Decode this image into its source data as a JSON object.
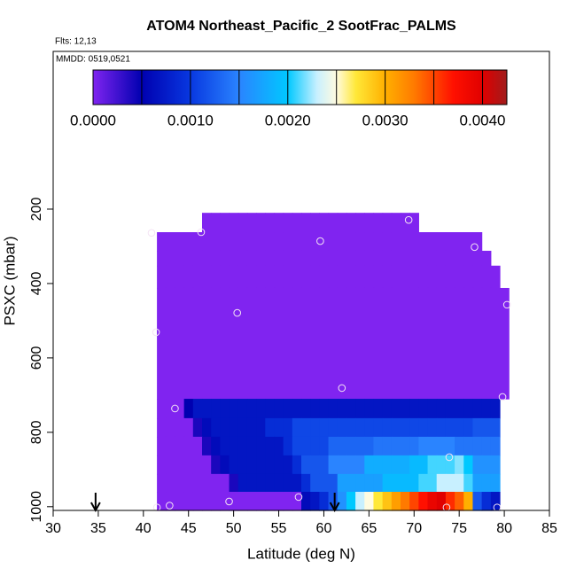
{
  "chart_data": {
    "type": "heatmap",
    "title": "ATOM4 Northeast_Pacific_2 SootFrac_PALMS",
    "flights": "Flts: 12,13",
    "dates": "MMDD: 0519,0521",
    "xlabel": "Latitude (deg N)",
    "ylabel": "PSXC (mbar)",
    "xlim": [
      30,
      85
    ],
    "xticks": [
      30,
      35,
      40,
      45,
      50,
      55,
      60,
      65,
      70,
      75,
      80,
      85
    ],
    "ylim": [
      1010,
      -224
    ],
    "yticks": [
      200,
      400,
      600,
      800,
      1000
    ],
    "x_edges": [
      41.5,
      42.5,
      43.5,
      44.5,
      45.5,
      46.5,
      47.5,
      48.5,
      49.5,
      50.5,
      51.5,
      52.5,
      53.5,
      54.5,
      55.5,
      56.5,
      57.5,
      58.5,
      59.5,
      60.5,
      61.5,
      62.5,
      63.5,
      64.5,
      65.5,
      66.5,
      67.5,
      68.5,
      69.5,
      70.5,
      71.5,
      72.5,
      73.5,
      74.5,
      75.5,
      76.5,
      77.5,
      78.5,
      79.5,
      80.5
    ],
    "y_edges": [
      210,
      262,
      312,
      352,
      412,
      710,
      762,
      812,
      862,
      912,
      960,
      1010
    ],
    "z": [
      [
        null,
        null,
        null,
        null,
        null,
        0,
        0,
        0,
        0,
        0,
        0,
        0,
        0,
        0,
        0,
        0,
        0,
        0,
        0,
        0,
        0,
        0,
        0,
        0,
        0,
        0,
        0,
        0,
        0,
        null,
        null,
        null,
        null,
        null,
        null,
        null,
        null,
        null,
        null
      ],
      [
        0,
        0,
        0,
        0,
        0,
        0,
        0,
        0,
        0,
        0,
        0,
        0,
        0,
        0,
        0,
        0,
        0,
        0,
        0,
        0,
        0,
        0,
        0,
        0,
        0,
        0,
        0,
        0,
        0,
        0,
        0,
        0,
        0,
        0,
        0,
        0,
        null,
        null,
        null
      ],
      [
        0,
        0,
        0,
        0,
        0,
        0,
        0,
        0,
        0,
        0,
        0,
        0,
        0,
        0,
        0,
        0,
        0,
        0,
        0,
        0,
        0,
        0,
        0,
        0,
        0,
        0,
        0,
        0,
        0,
        0,
        0,
        0,
        0,
        0,
        0,
        0,
        0,
        null,
        null
      ],
      [
        0,
        0,
        0,
        0,
        0,
        0,
        0,
        0,
        0,
        0,
        0,
        0,
        0,
        0,
        0,
        0,
        0,
        0,
        0,
        0,
        0,
        0,
        0,
        0,
        0,
        0,
        0,
        0,
        0,
        0,
        0,
        0,
        0,
        0,
        0,
        0,
        0,
        0,
        null
      ],
      [
        0,
        0,
        0,
        0,
        0,
        0,
        0,
        0,
        0,
        0,
        0,
        0,
        0,
        0,
        0,
        0,
        0,
        0,
        0,
        0,
        0,
        0,
        0,
        0,
        0,
        0,
        0,
        0,
        0,
        0,
        0,
        0,
        0,
        0,
        0,
        0,
        0,
        0,
        0
      ],
      [
        0,
        0,
        0,
        0.0005,
        0.0007,
        0.0007,
        0.0007,
        0.0007,
        0.0007,
        0.0007,
        0.0007,
        0.0007,
        0.0007,
        0.0007,
        0.0007,
        0.0007,
        0.0007,
        0.0007,
        0.0007,
        0.0007,
        0.0007,
        0.0007,
        0.0007,
        0.0007,
        0.0007,
        0.0007,
        0.0007,
        0.0007,
        0.0007,
        0.0007,
        0.0007,
        0.0007,
        0.0007,
        0.0007,
        0.0007,
        0.0007,
        0.0007,
        0.0007,
        null
      ],
      [
        0,
        0,
        0,
        0,
        0.0004,
        0.0006,
        0.0007,
        0.0007,
        0.0007,
        0.0007,
        0.0007,
        0.0007,
        0.0009,
        0.0009,
        0.0009,
        0.0011,
        0.0011,
        0.0011,
        0.0011,
        0.0011,
        0.0011,
        0.0011,
        0.0011,
        0.0011,
        0.0011,
        0.0011,
        0.0011,
        0.0011,
        0.0011,
        0.0011,
        0.0011,
        0.0011,
        0.0011,
        0.0011,
        0.0011,
        0.0012,
        0.0012,
        0.0012,
        null
      ],
      [
        0,
        0,
        0,
        0,
        0,
        0.0004,
        0.0006,
        0.0007,
        0.0007,
        0.0007,
        0.0007,
        0.0007,
        0.0007,
        0.0007,
        0.0009,
        0.0011,
        0.0011,
        0.0011,
        0.0011,
        0.0013,
        0.0013,
        0.0013,
        0.0013,
        0.0013,
        0.0014,
        0.0014,
        0.0014,
        0.0014,
        0.0014,
        0.0015,
        0.0015,
        0.0015,
        0.0015,
        0.0014,
        0.0014,
        0.0014,
        0.0014,
        0.0014,
        null
      ],
      [
        0,
        0,
        0,
        0,
        0,
        0,
        0.0004,
        0.0006,
        0.0007,
        0.0007,
        0.0007,
        0.0007,
        0.0007,
        0.0007,
        0.0007,
        0.0009,
        0.0012,
        0.0012,
        0.0012,
        0.0015,
        0.0015,
        0.0015,
        0.0015,
        0.0018,
        0.0018,
        0.0018,
        0.0018,
        0.0018,
        0.0019,
        0.0019,
        0.0021,
        0.0021,
        0.0021,
        0.0022,
        0.002,
        0.0016,
        0.0016,
        0.0016,
        null
      ],
      [
        0,
        0,
        0,
        0,
        0,
        0,
        0,
        0,
        0.0004,
        0.0007,
        0.0007,
        0.0007,
        0.0007,
        0.0007,
        0.0007,
        0.0007,
        0.0009,
        0.0012,
        0.0012,
        0.0012,
        0.0017,
        0.0017,
        0.0017,
        0.0017,
        0.0017,
        0.0019,
        0.0019,
        0.0019,
        0.0019,
        0.0021,
        0.0021,
        0.0023,
        0.0023,
        0.0023,
        0.0021,
        0.0017,
        0.0017,
        0.0017,
        null
      ],
      [
        0,
        0,
        0,
        0,
        0,
        0,
        0,
        0,
        0,
        0,
        0,
        0,
        0,
        0,
        0,
        0,
        0.0006,
        0.0007,
        0.0009,
        0.0012,
        0.0016,
        0.002,
        0.0023,
        0.0025,
        0.0027,
        0.0029,
        0.0031,
        0.0033,
        0.0035,
        0.0037,
        0.0039,
        0.004,
        0.0036,
        0.0034,
        0.003,
        0.0012,
        0.0009,
        0.0007,
        null
      ]
    ],
    "points": {
      "lat": [
        40.9,
        46.4,
        69.4,
        59.6,
        76.7,
        80.3,
        50.4,
        41.4,
        62.0,
        79.8,
        43.5,
        73.9,
        57.2,
        49.5,
        41.5,
        42.9,
        73.6,
        79.2
      ],
      "pressure": [
        264,
        262,
        229,
        286,
        302,
        457,
        479,
        531,
        681,
        705,
        736,
        867,
        974,
        986,
        1002,
        997,
        1002,
        1002
      ]
    },
    "arrows": [
      34.7,
      61.2
    ],
    "colorbar": {
      "lim": [
        0,
        0.00425
      ],
      "ticks": [
        {
          "value": 0,
          "label": "0.0000"
        },
        {
          "value": 0.001,
          "label": "0.0010"
        },
        {
          "value": 0.002,
          "label": "0.0020"
        },
        {
          "value": 0.003,
          "label": "0.0030"
        },
        {
          "value": 0.004,
          "label": "0.0040"
        }
      ],
      "breaks": [
        0.0005,
        0.001,
        0.0015,
        0.002,
        0.0025,
        0.003,
        0.0035,
        0.004
      ],
      "colormap": [
        {
          "value": 0,
          "color": "#8024f0"
        },
        {
          "value": 0.0005,
          "color": "#0000b0"
        },
        {
          "value": 0.001,
          "color": "#0838e0"
        },
        {
          "value": 0.0015,
          "color": "#2a84ff"
        },
        {
          "value": 0.002,
          "color": "#00c8ff"
        },
        {
          "value": 0.0023,
          "color": "#c8f0ff"
        },
        {
          "value": 0.0025,
          "color": "#fffbe0"
        },
        {
          "value": 0.0027,
          "color": "#ffe838"
        },
        {
          "value": 0.003,
          "color": "#ffb000"
        },
        {
          "value": 0.0033,
          "color": "#ff7a00"
        },
        {
          "value": 0.0037,
          "color": "#ff1000"
        },
        {
          "value": 0.004,
          "color": "#e00000"
        },
        {
          "value": 0.00425,
          "color": "#a01c1c"
        }
      ]
    }
  }
}
